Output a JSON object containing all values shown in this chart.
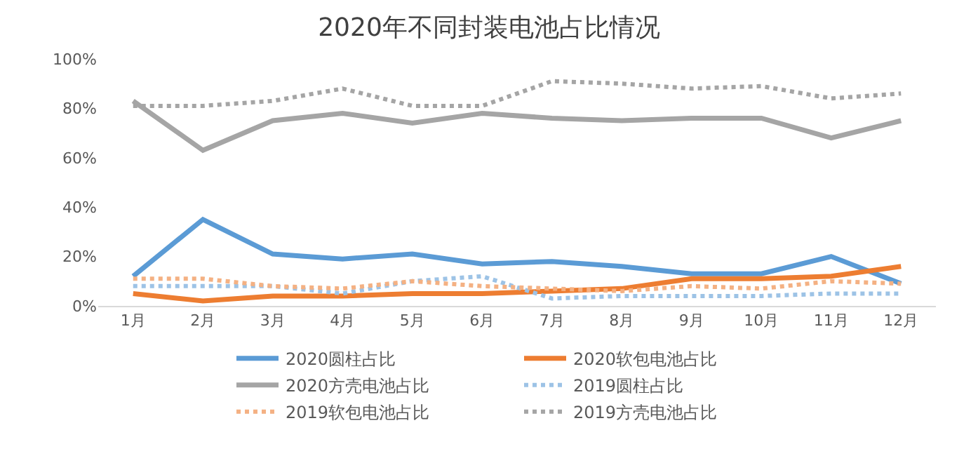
{
  "chart_data": {
    "type": "line",
    "title": "2020年不同封装电池占比情况",
    "categories": [
      "1月",
      "2月",
      "3月",
      "4月",
      "5月",
      "6月",
      "7月",
      "8月",
      "9月",
      "10月",
      "11月",
      "12月"
    ],
    "series": [
      {
        "name": "2020圆柱占比",
        "color": "#5b9bd5",
        "line_style": "solid",
        "values": [
          12,
          35,
          21,
          19,
          21,
          17,
          18,
          16,
          13,
          13,
          20,
          9
        ]
      },
      {
        "name": "2020软包电池占比",
        "color": "#ed7d31",
        "line_style": "solid",
        "values": [
          5,
          2,
          4,
          4,
          5,
          5,
          6,
          7,
          11,
          11,
          12,
          16
        ]
      },
      {
        "name": "2020方壳电池占比",
        "color": "#a5a5a5",
        "line_style": "solid",
        "values": [
          83,
          63,
          75,
          78,
          74,
          78,
          76,
          75,
          76,
          76,
          68,
          75
        ]
      },
      {
        "name": "2019圆柱占比",
        "color": "#9dc3e6",
        "line_style": "dotted",
        "values": [
          8,
          8,
          8,
          5,
          10,
          12,
          3,
          4,
          4,
          4,
          5,
          5
        ]
      },
      {
        "name": "2019软包电池占比",
        "color": "#f4b183",
        "line_style": "dotted",
        "values": [
          11,
          11,
          8,
          7,
          10,
          8,
          7,
          6,
          8,
          7,
          10,
          9
        ]
      },
      {
        "name": "2019方壳电池占比",
        "color": "#a5a5a5",
        "line_style": "dotted",
        "values": [
          81,
          81,
          83,
          88,
          81,
          81,
          91,
          90,
          88,
          89,
          84,
          86
        ]
      }
    ],
    "ylim": [
      0,
      100
    ],
    "yticks": [
      {
        "value": 0,
        "label": "0%"
      },
      {
        "value": 20,
        "label": "20%"
      },
      {
        "value": 40,
        "label": "40%"
      },
      {
        "value": 60,
        "label": "60%"
      },
      {
        "value": 80,
        "label": "80%"
      },
      {
        "value": 100,
        "label": "100%"
      }
    ],
    "grid": false,
    "legend": "bottom",
    "marker": "none"
  }
}
